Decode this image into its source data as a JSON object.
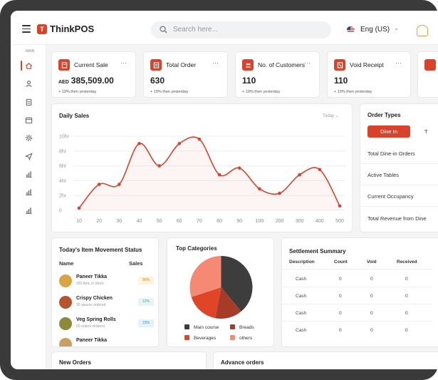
{
  "app": {
    "brand": "ThinkPOS",
    "logo_letter": "T"
  },
  "search": {
    "placeholder": "Search here..."
  },
  "header": {
    "language": "Eng (US)"
  },
  "sidebar": {
    "menu_label": "MAIN"
  },
  "stats": [
    {
      "title": "Current Sale",
      "currency": "AED",
      "value": "385,509.00",
      "trend": "+ 19% then yesterday",
      "more": "···"
    },
    {
      "title": "Total Order",
      "value": "630",
      "trend": "+ 19% then yesterday",
      "more": "···"
    },
    {
      "title": "No. of Customers",
      "value": "110",
      "trend": "+ 19% then yesterday",
      "more": "···"
    },
    {
      "title": "Void Receipt",
      "value": "110",
      "trend": "+ 19% then yesterday",
      "more": "···"
    }
  ],
  "daily_sales": {
    "title": "Daily Sales",
    "period": "Today"
  },
  "chart_data": {
    "type": "line",
    "title": "Daily Sales",
    "x": [
      10,
      20,
      30,
      40,
      50,
      60,
      70,
      80,
      90,
      100,
      200,
      300,
      400,
      500
    ],
    "y_ticks": [
      "0",
      "2hr",
      "4hr",
      "6hr",
      "8hr",
      "10hr"
    ],
    "y_values": [
      0.3,
      3.5,
      3.5,
      9.0,
      6.0,
      9.0,
      9.6,
      4.8,
      5.7,
      2.9,
      2.3,
      4.8,
      5.5,
      0.6
    ],
    "ylim": [
      0,
      10
    ],
    "line_color": "#d9432b",
    "grid": true
  },
  "order_types": {
    "title": "Order Types",
    "active_tab": "Dine In",
    "other_tab": "T",
    "rows": [
      "Total Dine-in Orders",
      "Active Tables",
      "Current Occupancy",
      "Total Revenue from Dine"
    ]
  },
  "movement": {
    "title": "Today's Item Movement Status",
    "col_name": "Name",
    "col_sales": "Sales",
    "items": [
      {
        "name": "Paneer Tikka",
        "sub": "250 Amt. in Stock",
        "badge": "90%",
        "color": "#d9a441",
        "badge_bg": "#fdf3dc",
        "badge_fg": "#c48a1a"
      },
      {
        "name": "Crispy Chicken",
        "sub": "30 sauces ordered",
        "badge": "12%",
        "color": "#b5542e",
        "badge_bg": "#e6f5f4",
        "badge_fg": "#3aa39a"
      },
      {
        "name": "Veg Spring Rolls",
        "sub": "50 orders ordered",
        "badge": "15%",
        "color": "#8a8a3a",
        "badge_bg": "#e4f2fb",
        "badge_fg": "#3a8fd1"
      },
      {
        "name": "Paneer Tikka",
        "sub": "",
        "badge": "",
        "color": "#c9a064",
        "badge_bg": "#fdf3dc",
        "badge_fg": "#c48a1a"
      }
    ]
  },
  "top_categories": {
    "title": "Top Categories",
    "slices": [
      {
        "name": "Main course",
        "value": 39,
        "color": "#3d3d3d"
      },
      {
        "name": "Breads",
        "value": 14,
        "color": "#a63c28"
      },
      {
        "name": "Beverages",
        "value": 17,
        "color": "#df4526"
      },
      {
        "name": "others",
        "value": 30,
        "color": "#f68973"
      }
    ]
  },
  "settlement": {
    "title": "Settlement Summary",
    "headers": [
      "Description",
      "Count",
      "Void",
      "Received"
    ],
    "rows": [
      [
        "Cash",
        "0",
        "0",
        "0"
      ],
      [
        "Cash",
        "0",
        "0",
        "0"
      ],
      [
        "Cash",
        "0",
        "0",
        "0"
      ],
      [
        "Cash",
        "0",
        "0",
        "0"
      ]
    ]
  },
  "bottom": {
    "new_orders": "New Orders",
    "advance_orders": "Advance orders"
  }
}
